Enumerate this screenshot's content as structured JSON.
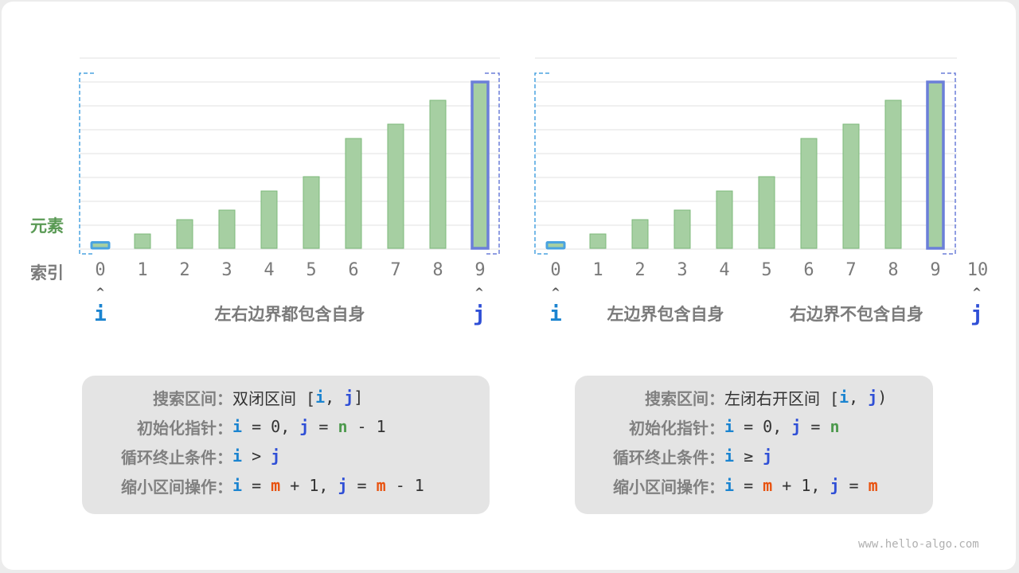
{
  "colors": {
    "bar_fill": "#a6cfa2",
    "bar_stroke": "#7cb97a",
    "i_color": "#1b84d0",
    "j_color": "#2f4fd6",
    "n_color": "#4e9a4e",
    "m_color": "#e8520f",
    "left_bracket": "#4aa3e0",
    "right_bracket": "#6b7fd9"
  },
  "element_label": "元素",
  "index_label": "索引",
  "bar_values": [
    0.25,
    0.6,
    1.2,
    1.6,
    2.4,
    3.0,
    4.6,
    5.2,
    6.2,
    7.0
  ],
  "left": {
    "indices": [
      "0",
      "1",
      "2",
      "3",
      "4",
      "5",
      "6",
      "7",
      "8",
      "9"
    ],
    "pointer_i": "i",
    "pointer_j": "j",
    "caption": "左右边界都包含自身",
    "box": {
      "rows": [
        {
          "label": "搜索区间：",
          "parts": [
            {
              "t": "双闭区间 [",
              "c": "cn"
            },
            {
              "t": "i",
              "c": "vi"
            },
            {
              "t": ", ",
              "c": "code"
            },
            {
              "t": "j",
              "c": "vj"
            },
            {
              "t": "]",
              "c": "cn"
            }
          ]
        },
        {
          "label": "初始化指针：",
          "parts": [
            {
              "t": "i",
              "c": "vi"
            },
            {
              "t": " = 0, ",
              "c": "code"
            },
            {
              "t": "j",
              "c": "vj"
            },
            {
              "t": " = ",
              "c": "code"
            },
            {
              "t": "n",
              "c": "vn"
            },
            {
              "t": " - 1",
              "c": "code"
            }
          ]
        },
        {
          "label": "循环终止条件：",
          "parts": [
            {
              "t": "i",
              "c": "vi"
            },
            {
              "t": " > ",
              "c": "code"
            },
            {
              "t": "j",
              "c": "vj"
            }
          ]
        },
        {
          "label": "缩小区间操作：",
          "parts": [
            {
              "t": "i",
              "c": "vi"
            },
            {
              "t": " = ",
              "c": "code"
            },
            {
              "t": "m",
              "c": "vm"
            },
            {
              "t": " + 1, ",
              "c": "code"
            },
            {
              "t": "j",
              "c": "vj"
            },
            {
              "t": " = ",
              "c": "code"
            },
            {
              "t": "m",
              "c": "vm"
            },
            {
              "t": " - 1",
              "c": "code"
            }
          ]
        }
      ]
    }
  },
  "right": {
    "indices": [
      "0",
      "1",
      "2",
      "3",
      "4",
      "5",
      "6",
      "7",
      "8",
      "9",
      "10"
    ],
    "pointer_i": "i",
    "pointer_j": "j",
    "caption_left": "左边界包含自身",
    "caption_right": "右边界不包含自身",
    "box": {
      "rows": [
        {
          "label": "搜索区间：",
          "parts": [
            {
              "t": "左闭右开区间 [",
              "c": "cn"
            },
            {
              "t": "i",
              "c": "vi"
            },
            {
              "t": ", ",
              "c": "code"
            },
            {
              "t": "j",
              "c": "vj"
            },
            {
              "t": ")",
              "c": "cn"
            }
          ]
        },
        {
          "label": "初始化指针：",
          "parts": [
            {
              "t": "i",
              "c": "vi"
            },
            {
              "t": " = 0, ",
              "c": "code"
            },
            {
              "t": "j",
              "c": "vj"
            },
            {
              "t": " = ",
              "c": "code"
            },
            {
              "t": "n",
              "c": "vn"
            }
          ]
        },
        {
          "label": "循环终止条件：",
          "parts": [
            {
              "t": "i",
              "c": "vi"
            },
            {
              "t": " ≥ ",
              "c": "code"
            },
            {
              "t": "j",
              "c": "vj"
            }
          ]
        },
        {
          "label": "缩小区间操作：",
          "parts": [
            {
              "t": "i",
              "c": "vi"
            },
            {
              "t": " = ",
              "c": "code"
            },
            {
              "t": "m",
              "c": "vm"
            },
            {
              "t": " + 1, ",
              "c": "code"
            },
            {
              "t": "j",
              "c": "vj"
            },
            {
              "t": " = ",
              "c": "code"
            },
            {
              "t": "m",
              "c": "vm"
            }
          ]
        }
      ]
    }
  },
  "watermark": "www.hello-algo.com"
}
